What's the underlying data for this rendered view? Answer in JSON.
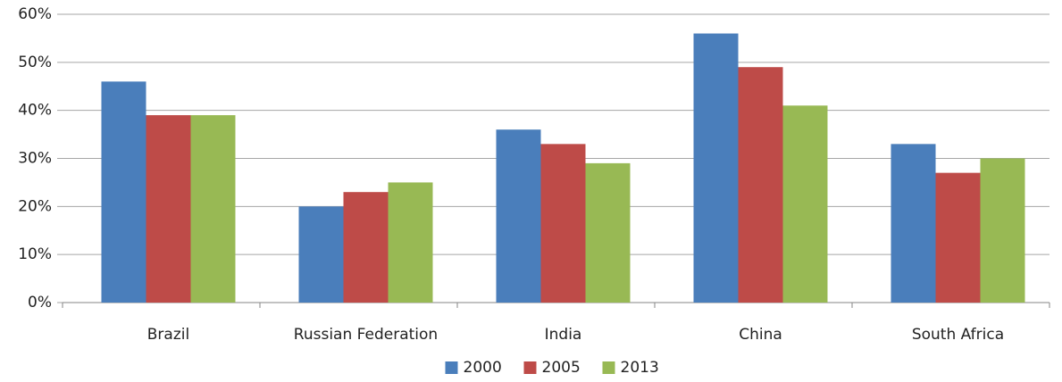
{
  "chart_data": {
    "type": "bar",
    "categories": [
      "Brazil",
      "Russian Federation",
      "India",
      "China",
      "South Africa"
    ],
    "series": [
      {
        "name": "2000",
        "color": "#4a7ebb",
        "values": [
          46,
          20,
          36,
          56,
          33
        ]
      },
      {
        "name": "2005",
        "color": "#be4b48",
        "values": [
          39,
          23,
          33,
          49,
          27
        ]
      },
      {
        "name": "2013",
        "color": "#98b954",
        "values": [
          39,
          25,
          29,
          41,
          30
        ]
      }
    ],
    "ylim": [
      0,
      60
    ],
    "yticks": [
      {
        "value": 0,
        "label": "0%"
      },
      {
        "value": 10,
        "label": "10%"
      },
      {
        "value": 20,
        "label": "20%"
      },
      {
        "value": 30,
        "label": "30%"
      },
      {
        "value": 40,
        "label": "40%"
      },
      {
        "value": 50,
        "label": "50%"
      },
      {
        "value": 60,
        "label": "60%"
      }
    ],
    "grid": true,
    "legend": "bottom"
  }
}
